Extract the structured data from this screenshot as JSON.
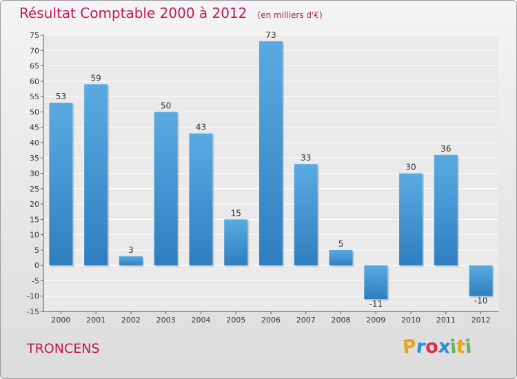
{
  "chart_data": {
    "type": "bar",
    "title": "Résultat Comptable 2000 à 2012",
    "subtitle": "(en milliers d'€)",
    "categories": [
      "2000",
      "2001",
      "2002",
      "2003",
      "2004",
      "2005",
      "2006",
      "2007",
      "2008",
      "2009",
      "2010",
      "2011",
      "2012"
    ],
    "values": [
      53,
      59,
      3,
      50,
      43,
      15,
      73,
      33,
      5,
      -11,
      30,
      36,
      -10
    ],
    "value_labels": [
      "53",
      "59",
      "3",
      "50",
      "43",
      "15",
      "73",
      "33",
      "5",
      "-11",
      "30",
      "36",
      "-10"
    ],
    "ylim": [
      -15,
      75
    ],
    "yticks": [
      "-15",
      "-10",
      "-5",
      "0",
      "5",
      "10",
      "15",
      "20",
      "25",
      "30",
      "35",
      "40",
      "45",
      "50",
      "55",
      "60",
      "65",
      "70",
      "75"
    ],
    "xlabel": "",
    "ylabel": "",
    "grid": true,
    "colors": {
      "bar_top": "#5aaae2",
      "bar_bottom": "#2f7fc0",
      "title": "#c2185b"
    }
  },
  "footer": {
    "commune": "TRONCENS",
    "logo": {
      "text": "Proxiti",
      "letters": [
        "P",
        "r",
        "o",
        "x",
        "i",
        "t",
        "i"
      ],
      "colors": [
        "#e8a317",
        "#2e8bd8",
        "#d8304d",
        "#2e8bd8",
        "#5cb85c",
        "#e8a317",
        "#5cb85c"
      ]
    }
  }
}
